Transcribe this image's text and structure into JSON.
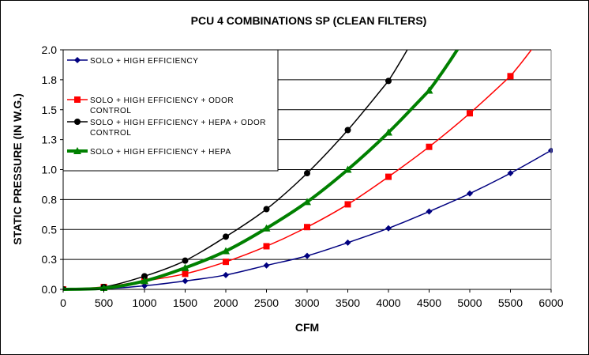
{
  "chart_data": {
    "type": "line",
    "title": "PCU 4 COMBINATIONS SP (CLEAN FILTERS)",
    "xlabel": "CFM",
    "ylabel": "STATIC PRESSURE (IN W.G.)",
    "xlim": [
      0,
      6000
    ],
    "ylim": [
      0,
      2.0
    ],
    "x_ticks": [
      "0",
      "500",
      "1000",
      "1500",
      "2000",
      "2500",
      "3000",
      "3500",
      "4000",
      "4500",
      "5000",
      "5500",
      "6000"
    ],
    "y_ticks": [
      "0.0",
      "0.3",
      "0.5",
      "0.8",
      "1.0",
      "1.3",
      "1.5",
      "1.8",
      "2.0"
    ],
    "y_tick_values": [
      0,
      0.25,
      0.5,
      0.75,
      1.0,
      1.25,
      1.5,
      1.75,
      2.0
    ],
    "grid": "horizontal",
    "legend_position": "top-left",
    "series": [
      {
        "name": "SOLO + HIGH EFFICIENCY",
        "color": "#000080",
        "marker": "diamond",
        "x": [
          0,
          500,
          1000,
          1500,
          2000,
          2500,
          3000,
          3500,
          4000,
          4500,
          5000,
          5500,
          6000
        ],
        "y": [
          0,
          0.005,
          0.03,
          0.07,
          0.12,
          0.2,
          0.28,
          0.39,
          0.51,
          0.65,
          0.8,
          0.97,
          1.16
        ]
      },
      {
        "name": "SOLO + HIGH EFFICIENCY + ODOR CONTROL",
        "color": "#ff0000",
        "marker": "square",
        "x": [
          0,
          500,
          1000,
          1500,
          2000,
          2500,
          3000,
          3500,
          4000,
          4500,
          5000,
          5500
        ],
        "y": [
          0,
          0.02,
          0.07,
          0.13,
          0.23,
          0.36,
          0.52,
          0.71,
          0.94,
          1.19,
          1.47,
          1.78
        ]
      },
      {
        "name": "SOLO + HIGH EFFICIENCY + HEPA + ODOR CONTROL",
        "color": "#000000",
        "marker": "circle",
        "x": [
          0,
          500,
          1000,
          1500,
          2000,
          2500,
          3000,
          3500,
          4000
        ],
        "y": [
          0,
          0.02,
          0.11,
          0.24,
          0.44,
          0.67,
          0.97,
          1.33,
          1.74
        ]
      },
      {
        "name": "SOLO + HIGH EFFICIENCY + HEPA",
        "color": "#008000",
        "marker": "triangle",
        "x": [
          0,
          500,
          1000,
          1500,
          2000,
          2500,
          3000,
          3500,
          4000,
          4500
        ],
        "y": [
          0,
          0.01,
          0.07,
          0.18,
          0.32,
          0.51,
          0.73,
          1.0,
          1.31,
          1.66
        ]
      }
    ]
  }
}
